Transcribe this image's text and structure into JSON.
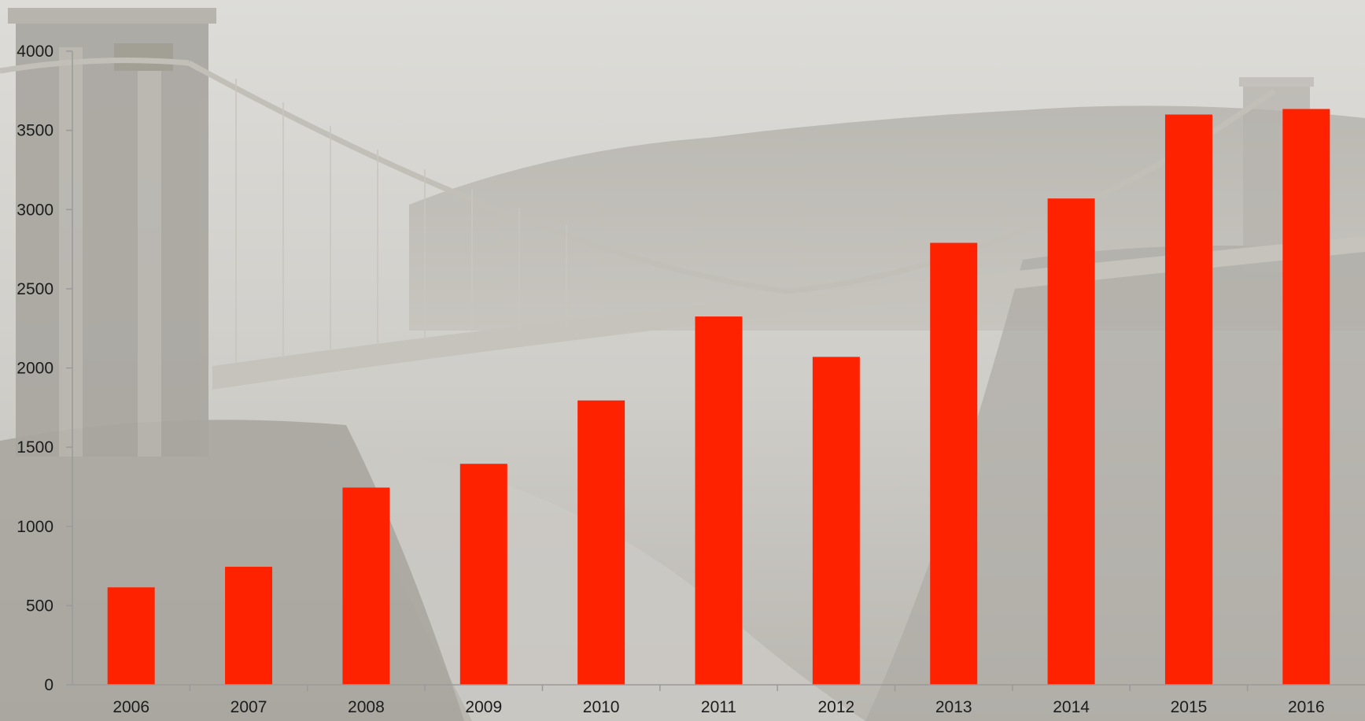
{
  "chart_data": {
    "type": "bar",
    "title": "",
    "xlabel": "",
    "ylabel": "",
    "categories": [
      "2006",
      "2007",
      "2008",
      "2009",
      "2010",
      "2011",
      "2012",
      "2013",
      "2014",
      "2015",
      "2016"
    ],
    "values": [
      615,
      745,
      1245,
      1395,
      1795,
      2325,
      2070,
      2790,
      3070,
      3600,
      3635
    ],
    "ylim": [
      0,
      4000
    ],
    "yticks": [
      0,
      500,
      1000,
      1500,
      2000,
      2500,
      3000,
      3500,
      4000
    ],
    "grid": false,
    "legend": "none",
    "bar_color": "#ff2200",
    "axis_color": "#9a9a9a",
    "background": "grayscale photo of a suspension bridge over a misty gorge"
  }
}
